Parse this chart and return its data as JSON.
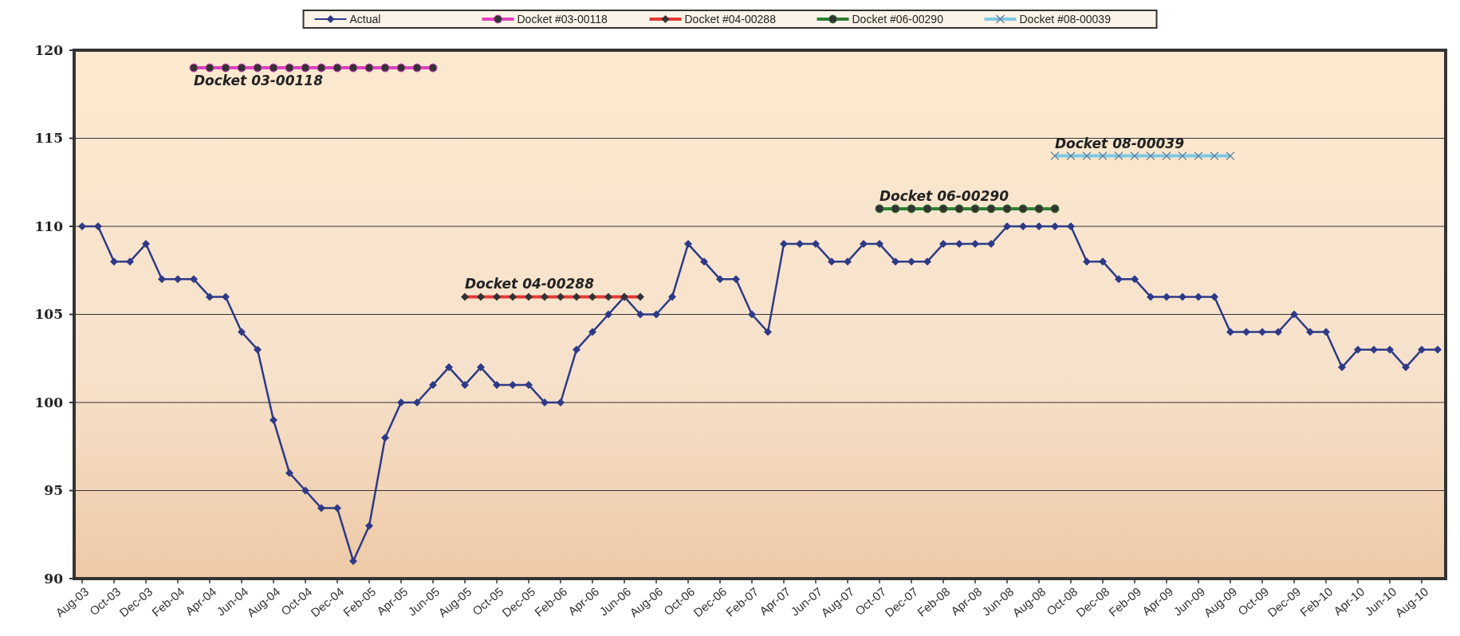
{
  "chart_data": {
    "type": "line",
    "categories": [
      "Aug-03",
      null,
      "Oct-03",
      null,
      "Dec-03",
      null,
      "Feb-04",
      null,
      "Apr-04",
      null,
      "Jun-04",
      null,
      "Aug-04",
      null,
      "Oct-04",
      null,
      "Dec-04",
      null,
      "Feb-05",
      null,
      "Apr-05",
      null,
      "Jun-05",
      null,
      "Aug-05",
      null,
      "Oct-05",
      null,
      "Dec-05",
      null,
      "Feb-06",
      null,
      "Apr-06",
      null,
      "Jun-06",
      null,
      "Aug-06",
      null,
      "Oct-06",
      null,
      "Dec-06",
      null,
      "Feb-07",
      null,
      "Apr-07",
      null,
      "Jun-07",
      null,
      "Aug-07",
      null,
      "Oct-07",
      null,
      "Dec-07",
      null,
      "Feb-08",
      null,
      "Apr-08",
      null,
      "Jun-08",
      null,
      "Aug-08",
      null,
      "Oct-08",
      null,
      "Dec-08",
      null,
      "Feb-09",
      null,
      "Apr-09",
      null,
      "Jun-09",
      null,
      "Aug-09",
      null,
      "Oct-09",
      null,
      "Dec-09",
      null,
      "Feb-10",
      null,
      "Apr-10",
      null,
      "Jun-10",
      null,
      "Aug-10",
      null
    ],
    "series": [
      {
        "name": "Actual",
        "color": "#2e3a87",
        "marker": "diamond",
        "values": [
          110,
          110,
          108,
          108,
          109,
          107,
          107,
          107,
          106,
          106,
          104,
          103,
          99,
          96,
          95,
          94,
          94,
          91,
          93,
          98,
          100,
          100,
          101,
          102,
          101,
          102,
          101,
          101,
          101,
          100,
          100,
          103,
          104,
          105,
          106,
          105,
          105,
          106,
          109,
          108,
          107,
          107,
          105,
          104,
          109,
          109,
          109,
          108,
          108,
          109,
          109,
          108,
          108,
          108,
          109,
          109,
          109,
          109,
          110,
          110,
          110,
          110,
          110,
          108,
          108,
          107,
          107,
          106,
          106,
          106,
          106,
          106,
          104,
          104,
          104,
          104,
          105,
          104,
          104,
          102,
          103,
          103,
          103,
          102,
          103,
          103
        ]
      },
      {
        "name": "Docket #03-00118",
        "color": "#e040c0",
        "marker": "circle",
        "values": [
          null,
          null,
          null,
          null,
          null,
          null,
          null,
          119,
          119,
          119,
          119,
          119,
          119,
          119,
          119,
          119,
          119,
          119,
          119,
          119,
          119,
          119,
          119,
          null,
          null,
          null,
          null,
          null,
          null,
          null,
          null,
          null,
          null,
          null,
          null,
          null,
          null,
          null,
          null,
          null,
          null,
          null,
          null,
          null,
          null,
          null,
          null,
          null,
          null,
          null,
          null,
          null,
          null,
          null,
          null,
          null,
          null,
          null,
          null,
          null,
          null,
          null,
          null,
          null,
          null,
          null,
          null,
          null,
          null,
          null,
          null,
          null,
          null,
          null,
          null,
          null,
          null,
          null,
          null,
          null,
          null,
          null,
          null,
          null,
          null,
          null
        ]
      },
      {
        "name": "Docket #04-00288",
        "color": "#e53935",
        "marker": "diamond",
        "values": [
          null,
          null,
          null,
          null,
          null,
          null,
          null,
          null,
          null,
          null,
          null,
          null,
          null,
          null,
          null,
          null,
          null,
          null,
          null,
          null,
          null,
          null,
          null,
          null,
          106,
          106,
          106,
          106,
          106,
          106,
          106,
          106,
          106,
          106,
          106,
          106,
          null,
          null,
          null,
          null,
          null,
          null,
          null,
          null,
          null,
          null,
          null,
          null,
          null,
          null,
          null,
          null,
          null,
          null,
          null,
          null,
          null,
          null,
          null,
          null,
          null,
          null,
          null,
          null,
          null,
          null,
          null,
          null,
          null,
          null,
          null,
          null,
          null,
          null,
          null,
          null,
          null,
          null,
          null,
          null,
          null,
          null,
          null,
          null,
          null,
          null
        ]
      },
      {
        "name": "Docket #06-00290",
        "color": "#2e7d32",
        "marker": "circle",
        "values": [
          null,
          null,
          null,
          null,
          null,
          null,
          null,
          null,
          null,
          null,
          null,
          null,
          null,
          null,
          null,
          null,
          null,
          null,
          null,
          null,
          null,
          null,
          null,
          null,
          null,
          null,
          null,
          null,
          null,
          null,
          null,
          null,
          null,
          null,
          null,
          null,
          null,
          null,
          null,
          null,
          null,
          null,
          null,
          null,
          null,
          null,
          null,
          null,
          null,
          null,
          111,
          111,
          111,
          111,
          111,
          111,
          111,
          111,
          111,
          111,
          111,
          111,
          null,
          null,
          null,
          null,
          null,
          null,
          null,
          null,
          null,
          null,
          null,
          null,
          null,
          null,
          null,
          null,
          null,
          null,
          null,
          null,
          null,
          null,
          null,
          null
        ]
      },
      {
        "name": "Docket #08-00039",
        "color": "#7ec8e3",
        "marker": "cross",
        "values": [
          null,
          null,
          null,
          null,
          null,
          null,
          null,
          null,
          null,
          null,
          null,
          null,
          null,
          null,
          null,
          null,
          null,
          null,
          null,
          null,
          null,
          null,
          null,
          null,
          null,
          null,
          null,
          null,
          null,
          null,
          null,
          null,
          null,
          null,
          null,
          null,
          null,
          null,
          null,
          null,
          null,
          null,
          null,
          null,
          null,
          null,
          null,
          null,
          null,
          null,
          null,
          null,
          null,
          null,
          null,
          null,
          null,
          null,
          null,
          null,
          null,
          114,
          114,
          114,
          114,
          114,
          114,
          114,
          114,
          114,
          114,
          114,
          114,
          null,
          null,
          null,
          null,
          null,
          null,
          null,
          null,
          null,
          null,
          null,
          null,
          null
        ]
      }
    ],
    "annotations": [
      "Docket 03-00118",
      "Docket 04-00288",
      "Docket 06-00290",
      "Docket 08-00039"
    ],
    "ylim": [
      90,
      120
    ],
    "yticks": [
      90,
      95,
      100,
      105,
      110,
      115,
      120
    ],
    "grid": "y",
    "legend": "top"
  }
}
